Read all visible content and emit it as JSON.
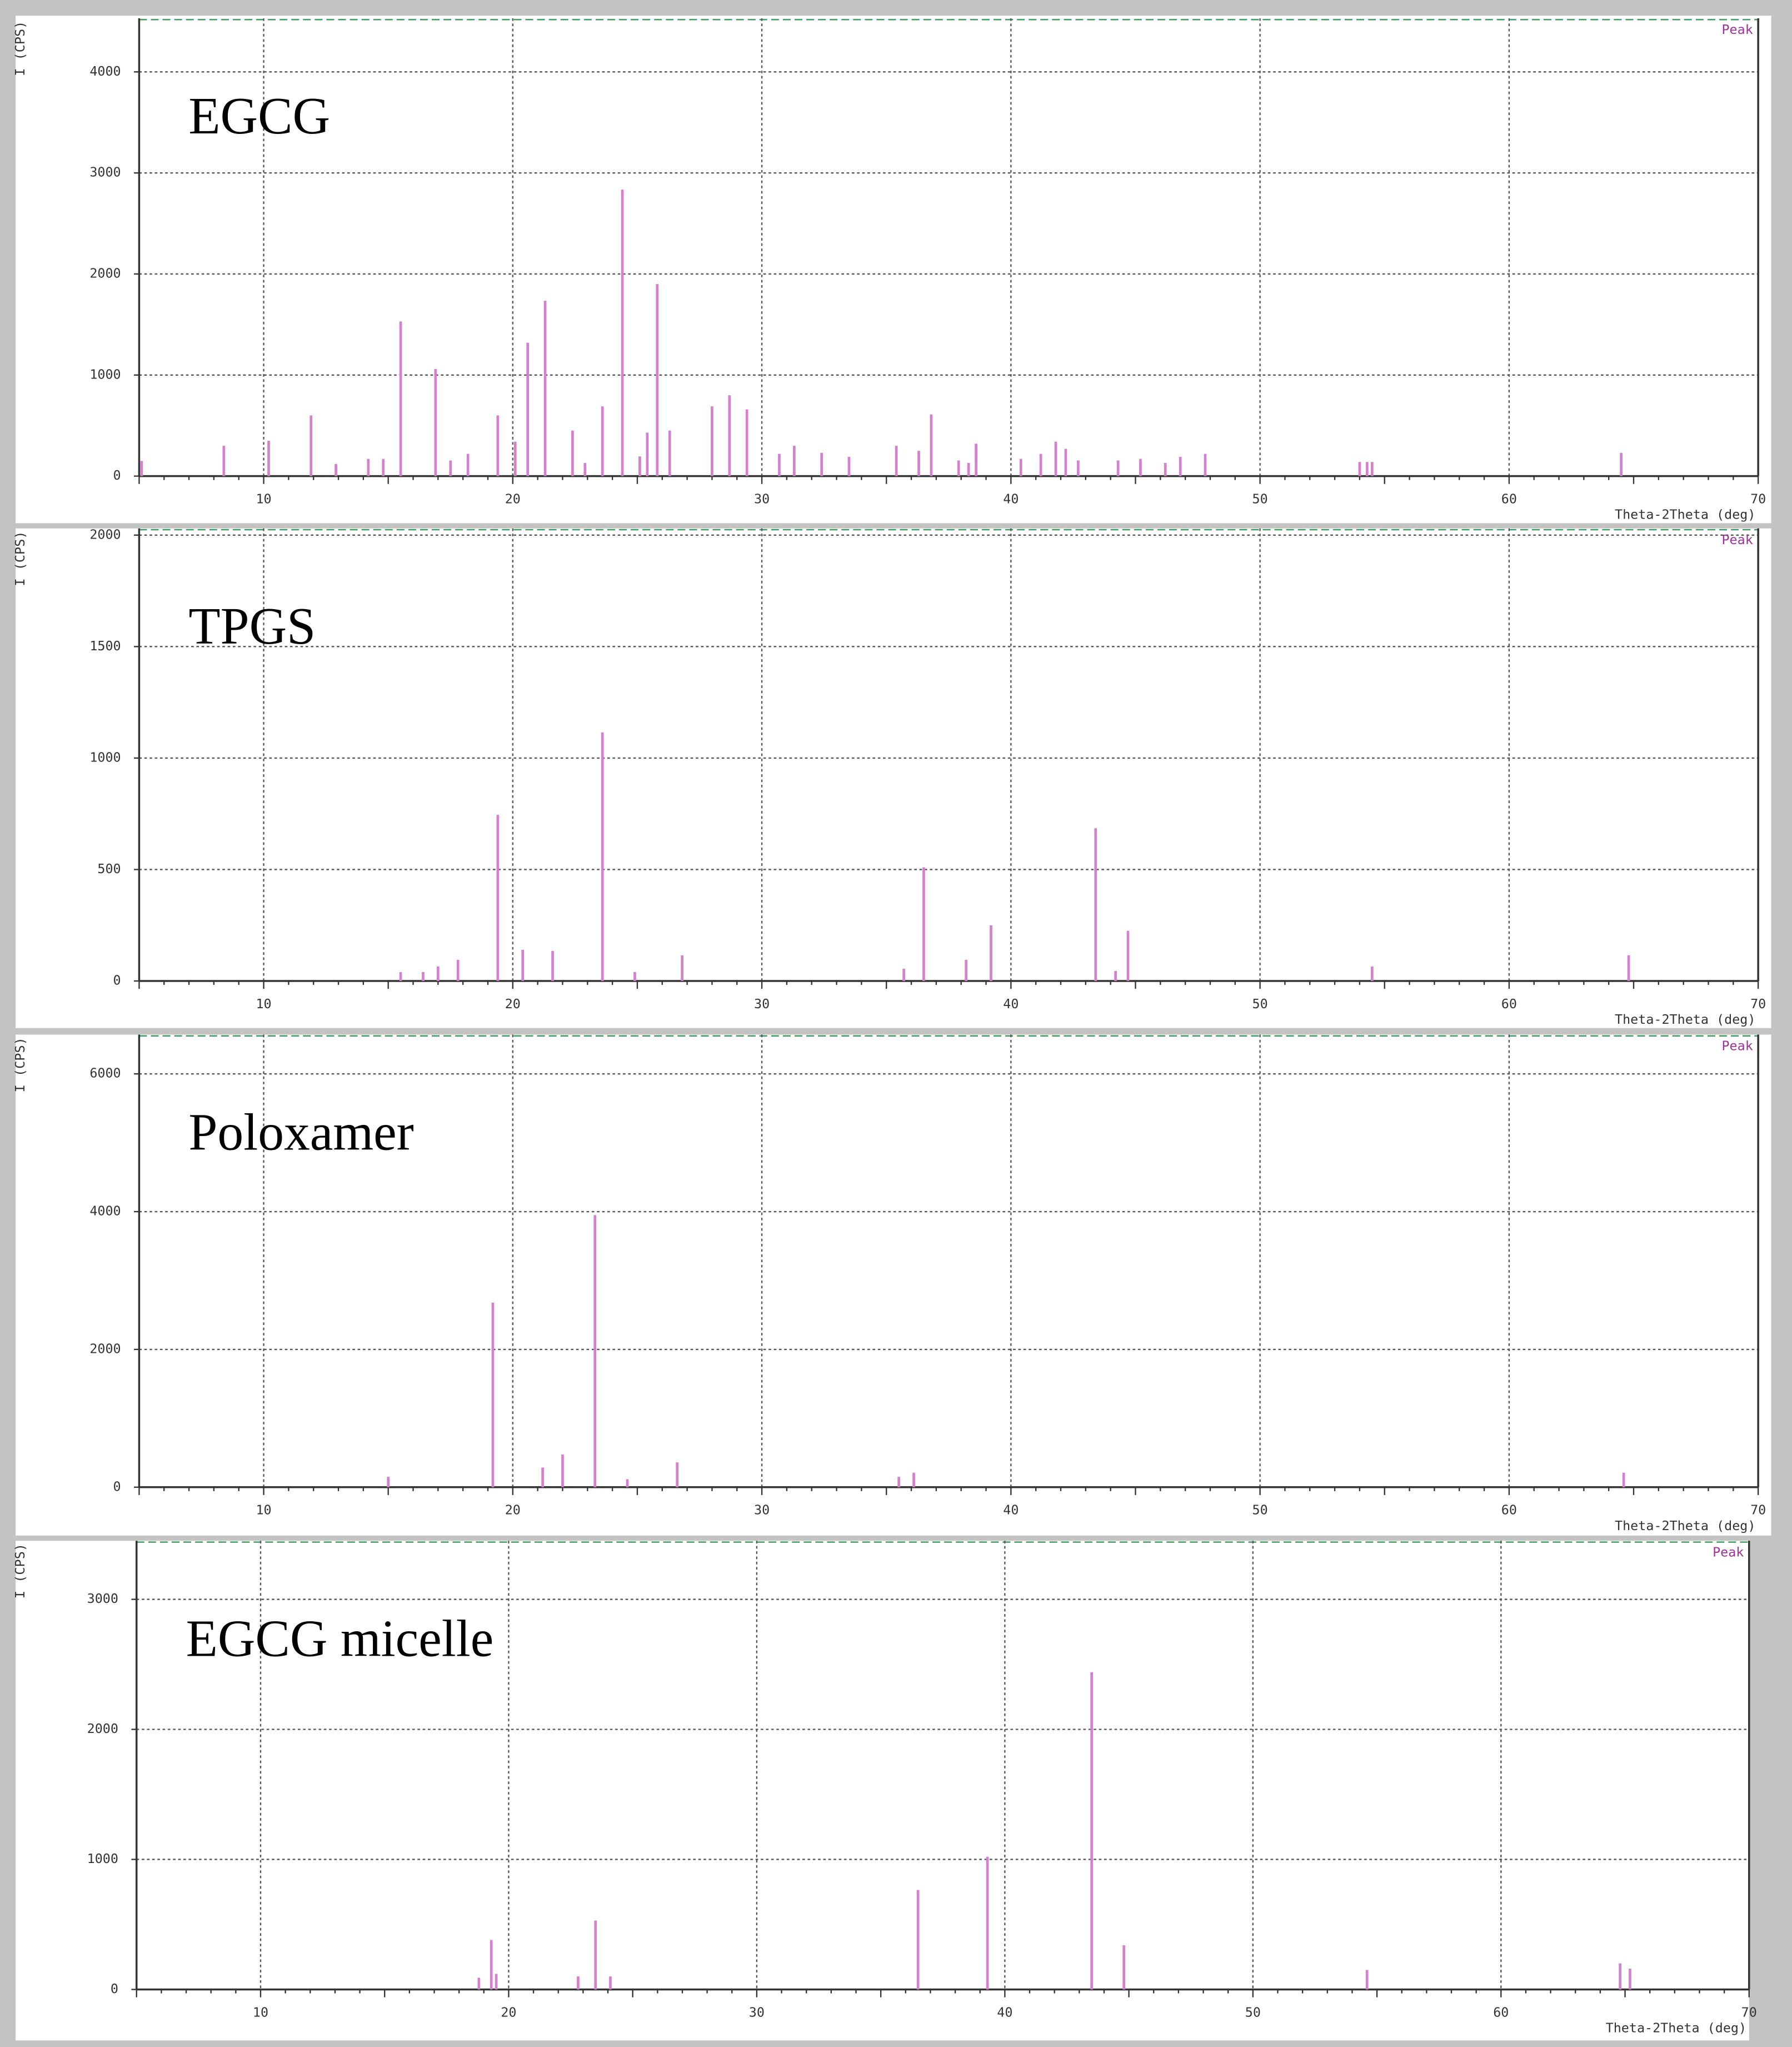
{
  "chart_data": [
    {
      "type": "bar",
      "title": "EGCG",
      "xlabel": "Theta-2Theta (deg)",
      "ylabel": "I (CPS)",
      "grid": true,
      "xlim": [
        5,
        70
      ],
      "ylim": [
        0,
        4530
      ],
      "xticks": [
        10,
        20,
        30,
        40,
        50,
        60,
        70
      ],
      "yticks": [
        0,
        1000,
        2000,
        3000,
        4000
      ],
      "x": [
        5.1,
        8.4,
        10.2,
        11.9,
        12.9,
        14.2,
        14.8,
        15.5,
        16.9,
        17.5,
        18.2,
        19.4,
        20.1,
        20.6,
        21.3,
        22.4,
        22.9,
        23.6,
        24.4,
        25.1,
        25.4,
        25.8,
        26.3,
        28.0,
        28.7,
        29.4,
        30.7,
        31.3,
        32.4,
        33.5,
        35.4,
        36.3,
        36.8,
        37.9,
        38.3,
        38.6,
        40.4,
        41.2,
        41.8,
        42.2,
        42.7,
        44.3,
        45.2,
        46.2,
        46.8,
        47.8,
        54.0,
        54.3,
        54.5,
        64.5
      ],
      "series": [
        {
          "name": "Peak",
          "color": "#d67fce",
          "values": [
            150,
            300,
            350,
            600,
            120,
            170,
            170,
            1530,
            1060,
            155,
            220,
            600,
            340,
            1320,
            1735,
            450,
            130,
            690,
            2835,
            195,
            430,
            1900,
            450,
            690,
            800,
            660,
            220,
            300,
            230,
            190,
            300,
            250,
            610,
            155,
            130,
            320,
            170,
            220,
            340,
            270,
            155,
            155,
            170,
            130,
            190,
            220,
            140,
            140,
            140,
            230
          ]
        }
      ]
    },
    {
      "type": "bar",
      "title": "TPGS",
      "xlabel": "Theta-2Theta (deg)",
      "ylabel": "I (CPS)",
      "grid": true,
      "xlim": [
        5,
        70
      ],
      "ylim": [
        0,
        2030
      ],
      "xticks": [
        10,
        20,
        30,
        40,
        50,
        60,
        70
      ],
      "yticks": [
        0,
        500,
        1000,
        1500,
        2000
      ],
      "x": [
        15.5,
        16.4,
        17.0,
        17.8,
        19.4,
        20.4,
        21.6,
        23.6,
        24.9,
        26.8,
        35.7,
        36.5,
        38.2,
        39.2,
        43.4,
        44.2,
        44.7,
        54.5,
        64.8
      ],
      "series": [
        {
          "name": "Peak",
          "color": "#d67fce",
          "values": [
            40,
            40,
            65,
            95,
            745,
            140,
            135,
            1115,
            40,
            115,
            55,
            510,
            95,
            250,
            685,
            45,
            225,
            65,
            115
          ]
        }
      ]
    },
    {
      "type": "bar",
      "title": "Poloxamer",
      "xlabel": "Theta-2Theta (deg)",
      "ylabel": "I (CPS)",
      "grid": true,
      "xlim": [
        5,
        70
      ],
      "ylim": [
        0,
        6570
      ],
      "xticks": [
        10,
        20,
        30,
        40,
        50,
        60,
        70
      ],
      "yticks": [
        0,
        2000,
        4000,
        6000
      ],
      "x": [
        15.0,
        19.2,
        21.2,
        22.0,
        23.3,
        24.6,
        26.6,
        35.5,
        36.1,
        64.6
      ],
      "series": [
        {
          "name": "Peak",
          "color": "#d67fce",
          "values": [
            150,
            2680,
            285,
            475,
            3950,
            115,
            360,
            150,
            210,
            210
          ]
        }
      ]
    },
    {
      "type": "bar",
      "title": "EGCG micelle",
      "xlabel": "Theta-2Theta (deg)",
      "ylabel": "I (CPS)",
      "grid": true,
      "xlim": [
        5,
        70
      ],
      "ylim": [
        0,
        3450
      ],
      "xticks": [
        10,
        20,
        30,
        40,
        50,
        60,
        70
      ],
      "yticks": [
        0,
        1000,
        2000,
        3000
      ],
      "x": [
        18.8,
        19.3,
        19.5,
        22.8,
        23.5,
        24.1,
        36.5,
        39.3,
        43.5,
        44.8,
        54.6,
        64.8,
        65.2
      ],
      "series": [
        {
          "name": "Peak",
          "color": "#d67fce",
          "values": [
            90,
            380,
            120,
            100,
            530,
            100,
            765,
            1020,
            2440,
            340,
            150,
            200,
            160
          ]
        }
      ]
    }
  ]
}
